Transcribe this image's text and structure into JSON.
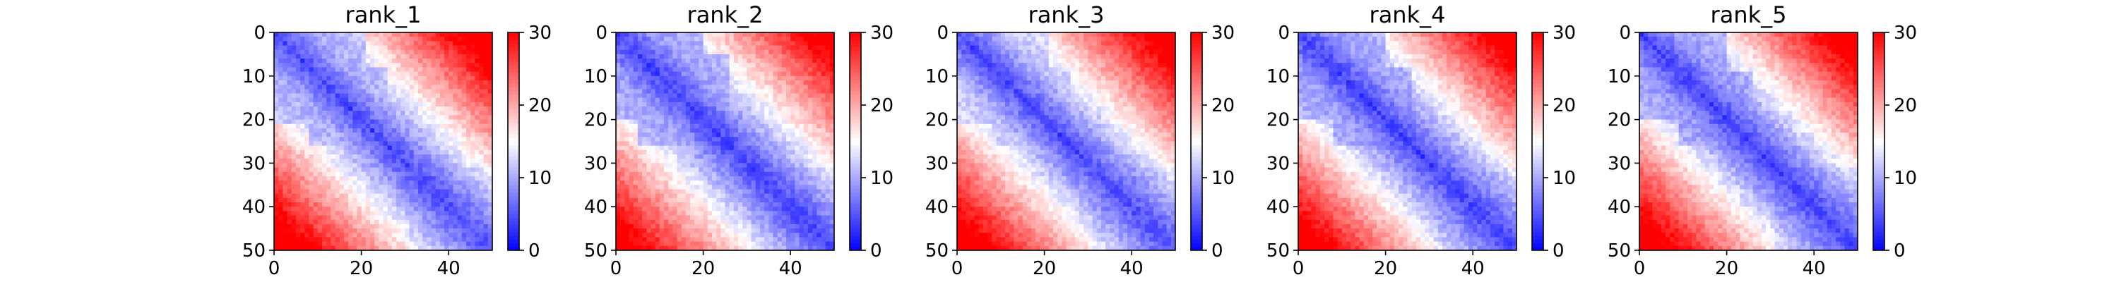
{
  "chart_data": [
    {
      "type": "heatmap",
      "title": "rank_1",
      "xlim": [
        0,
        50
      ],
      "ylim": [
        0,
        50
      ],
      "x_ticks": [
        "0",
        "20",
        "40"
      ],
      "y_ticks": [
        "0",
        "10",
        "20",
        "30",
        "40",
        "50"
      ],
      "grid_size": 50,
      "colorbar": {
        "range": [
          0,
          30
        ],
        "ticks": [
          "0",
          "10",
          "20",
          "30"
        ],
        "colormap": "bwr"
      },
      "grid": false
    },
    {
      "type": "heatmap",
      "title": "rank_2",
      "xlim": [
        0,
        50
      ],
      "ylim": [
        0,
        50
      ],
      "x_ticks": [
        "0",
        "20",
        "40"
      ],
      "y_ticks": [
        "0",
        "10",
        "20",
        "30",
        "40",
        "50"
      ],
      "grid_size": 50,
      "colorbar": {
        "range": [
          0,
          30
        ],
        "ticks": [
          "0",
          "10",
          "20",
          "30"
        ],
        "colormap": "bwr"
      },
      "grid": false
    },
    {
      "type": "heatmap",
      "title": "rank_3",
      "xlim": [
        0,
        50
      ],
      "ylim": [
        0,
        50
      ],
      "x_ticks": [
        "0",
        "20",
        "40"
      ],
      "y_ticks": [
        "0",
        "10",
        "20",
        "30",
        "40",
        "50"
      ],
      "grid_size": 50,
      "colorbar": {
        "range": [
          0,
          30
        ],
        "ticks": [
          "0",
          "10",
          "20",
          "30"
        ],
        "colormap": "bwr"
      },
      "grid": false
    },
    {
      "type": "heatmap",
      "title": "rank_4",
      "xlim": [
        0,
        50
      ],
      "ylim": [
        0,
        50
      ],
      "x_ticks": [
        "0",
        "20",
        "40"
      ],
      "y_ticks": [
        "0",
        "10",
        "20",
        "30",
        "40",
        "50"
      ],
      "grid_size": 50,
      "colorbar": {
        "range": [
          0,
          30
        ],
        "ticks": [
          "0",
          "10",
          "20",
          "30"
        ],
        "colormap": "bwr"
      },
      "grid": false
    },
    {
      "type": "heatmap",
      "title": "rank_5",
      "xlim": [
        0,
        50
      ],
      "ylim": [
        0,
        50
      ],
      "x_ticks": [
        "0",
        "20",
        "40"
      ],
      "y_ticks": [
        "0",
        "10",
        "20",
        "30",
        "40",
        "50"
      ],
      "grid_size": 50,
      "colorbar": {
        "range": [
          0,
          30
        ],
        "ticks": [
          "0",
          "10",
          "20",
          "30"
        ],
        "colormap": "bwr"
      },
      "grid": false
    }
  ]
}
